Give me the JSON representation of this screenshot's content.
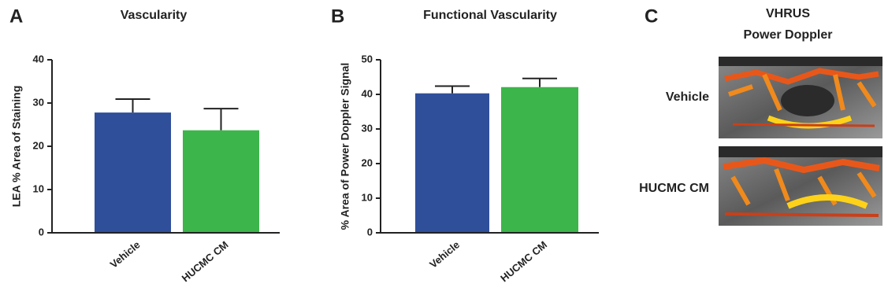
{
  "chart_data": [
    {
      "type": "bar",
      "label": "A",
      "title": "Vascularity",
      "ylabel": "LEA % Area of Staining",
      "categories": [
        "Vehicle",
        "HUCMC CM"
      ],
      "values": [
        27.8,
        23.7
      ],
      "errors": [
        3.1,
        5.0
      ],
      "colors": [
        "#2f4f9b",
        "#3cb54a"
      ],
      "ylim": [
        0,
        40
      ],
      "yticks": [
        0,
        10,
        20,
        30,
        40
      ]
    },
    {
      "type": "bar",
      "label": "B",
      "title": "Functional Vascularity",
      "ylabel": "% Area of Power Doppler Signal",
      "categories": [
        "Vehicle",
        "HUCMC CM"
      ],
      "values": [
        40.3,
        42.1
      ],
      "errors": [
        2.1,
        2.5
      ],
      "colors": [
        "#2f4f9b",
        "#3cb54a"
      ],
      "ylim": [
        0,
        50
      ],
      "yticks": [
        0,
        10,
        20,
        30,
        40,
        50
      ]
    }
  ],
  "panel_c": {
    "label": "C",
    "title": [
      "VHRUS",
      "Power Doppler"
    ],
    "rows": [
      "Vehicle",
      "HUCMC CM"
    ]
  }
}
